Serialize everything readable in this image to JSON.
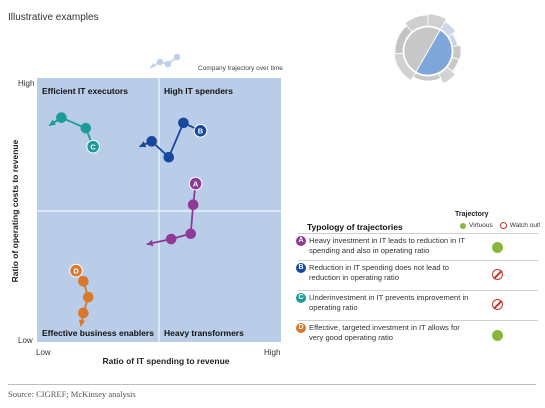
{
  "header": {
    "caption": "Illustrative examples"
  },
  "chart": {
    "ylabel": "Ratio of operating costs to revenue",
    "xlabel": "Ratio of IT spending to revenue",
    "y_high": "High",
    "y_low": "Low",
    "x_low": "Low",
    "x_high": "High",
    "trajectory_caption": "Company trajectory over time",
    "quadrants": {
      "top_left": "Efficient IT executors",
      "top_right": "High IT spenders",
      "bottom_left": "Effective business enablers",
      "bottom_right": "Heavy transformers"
    }
  },
  "chart_data": {
    "type": "scatter",
    "xlim": [
      0,
      1
    ],
    "ylim": [
      0,
      1
    ],
    "x_axis": "Ratio of IT spending to revenue",
    "y_axis": "Ratio of operating costs to revenue",
    "series": [
      {
        "name": "A",
        "color": "#8e3a96",
        "points": [
          [
            0.65,
            0.6
          ],
          [
            0.64,
            0.52
          ],
          [
            0.63,
            0.41
          ],
          [
            0.55,
            0.39
          ],
          [
            0.45,
            0.37
          ]
        ]
      },
      {
        "name": "B",
        "color": "#17479e",
        "points": [
          [
            0.67,
            0.8
          ],
          [
            0.6,
            0.83
          ],
          [
            0.54,
            0.7
          ],
          [
            0.47,
            0.76
          ],
          [
            0.42,
            0.74
          ]
        ]
      },
      {
        "name": "C",
        "color": "#1b9c9a",
        "points": [
          [
            0.23,
            0.74
          ],
          [
            0.2,
            0.81
          ],
          [
            0.1,
            0.85
          ],
          [
            0.05,
            0.82
          ]
        ]
      },
      {
        "name": "D",
        "color": "#d9772c",
        "points": [
          [
            0.16,
            0.27
          ],
          [
            0.19,
            0.23
          ],
          [
            0.21,
            0.17
          ],
          [
            0.19,
            0.11
          ],
          [
            0.18,
            0.06
          ]
        ]
      }
    ],
    "grid": false,
    "legend_position": "right"
  },
  "legend": {
    "title": "Typology of trajectories",
    "trajectory_header": "Trajectory",
    "virtuous_label": "Virtuous",
    "watch_label": "Watch out!",
    "colors": {
      "virtuous": "#8ab73b",
      "watch": "#c0362c"
    },
    "rows": [
      {
        "letter": "A",
        "color": "#8e3a96",
        "text": "Heavy investment in IT leads to reduction in IT spending and also in operating ratio",
        "status": "virtuous"
      },
      {
        "letter": "B",
        "color": "#17479e",
        "text": "Reduction in IT spending does not lead to reduction in operating ratio",
        "status": "watch"
      },
      {
        "letter": "C",
        "color": "#1b9c9a",
        "text": "Underinvestment in IT prevents improvement in operating ratio",
        "status": "watch"
      },
      {
        "letter": "D",
        "color": "#d9772c",
        "text": "Effective, targeted investment in IT allows for very good operating ratio",
        "status": "virtuous"
      }
    ]
  },
  "footer": {
    "source": "Source: CIGREF; McKinsey analysis"
  }
}
